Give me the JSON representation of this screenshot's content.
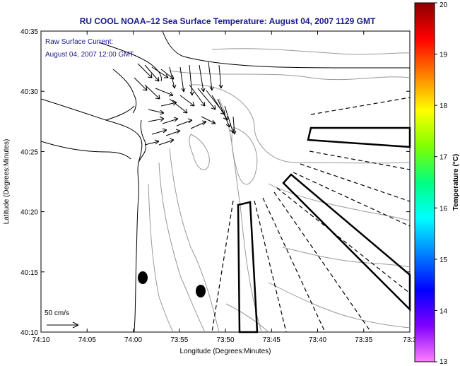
{
  "title": "RU COOL  NOAA–12  Sea Surface Temperature:  August 04, 2007 1129 GMT",
  "current_label_line1": "Raw Surface Current:",
  "current_label_line2": "August 04, 2007 12:00 GMT",
  "scale_label": "50 cm/s",
  "x_axis_label": "Longitude (Degrees:Minutes)",
  "y_axis_label": "Latitude (Degrees:Minutes)",
  "x_ticks": [
    "74:10",
    "74:05",
    "74:00",
    "73:55",
    "73:50",
    "73:45",
    "73:40",
    "73:35",
    "73:3"
  ],
  "y_ticks": [
    "40:35",
    "40:30",
    "40:25",
    "40:20",
    "40:15",
    "40:10"
  ],
  "colorbar": {
    "label": "Temperature (°C)",
    "ticks": [
      "20",
      "19",
      "18",
      "17",
      "16",
      "15",
      "14",
      "13"
    ],
    "colors": [
      "#8b0000",
      "#ff0000",
      "#ff8000",
      "#ffff00",
      "#80ff00",
      "#00ff80",
      "#00ffff",
      "#0080ff",
      "#0000ff",
      "#8000ff",
      "#ff80ff"
    ]
  },
  "map": {
    "x_range_deg": [
      -74.1667,
      -73.55
    ],
    "y_range_deg": [
      40.1667,
      40.5833
    ],
    "colors": {
      "land_line": "#000000",
      "bathymetry": "#999999",
      "vectors": "#000000"
    }
  }
}
